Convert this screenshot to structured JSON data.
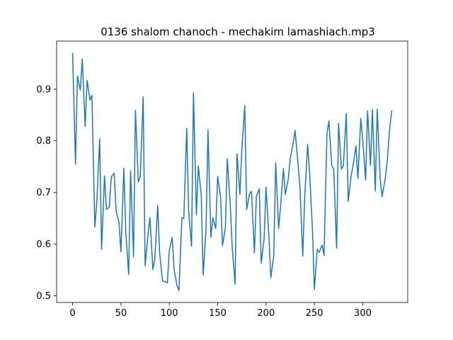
{
  "chart_data": {
    "type": "line",
    "title": "0136 shalom chanoch - mechakim lamashiach.mp3",
    "xlabel": "",
    "ylabel": "",
    "xlim": [
      -16.5,
      346.5
    ],
    "ylim": [
      0.487,
      0.993
    ],
    "xticks": [
      0,
      50,
      100,
      150,
      200,
      250,
      300
    ],
    "yticks": [
      0.5,
      0.6,
      0.7,
      0.8,
      0.9
    ],
    "ytick_labels": [
      "0.5",
      "0.6",
      "0.7",
      "0.8",
      "0.9"
    ],
    "grid": false,
    "line_color": "#1f77b4",
    "series": [
      {
        "x": [
          0,
          3,
          5,
          8,
          10,
          13,
          15,
          18,
          20,
          23,
          25,
          28,
          30,
          33,
          35,
          38,
          40,
          43,
          45,
          48,
          50,
          53,
          55,
          58,
          60,
          63,
          65,
          68,
          70,
          73,
          75,
          78,
          80,
          83,
          85,
          88,
          90,
          93,
          95,
          98,
          100,
          103,
          105,
          108,
          110,
          113,
          115,
          118,
          120,
          123,
          125,
          128,
          130,
          133,
          135,
          138,
          140,
          143,
          145,
          148,
          150,
          153,
          155,
          158,
          160,
          163,
          165,
          168,
          170,
          173,
          175,
          178,
          180,
          183,
          185,
          188,
          190,
          193,
          195,
          198,
          200,
          203,
          205,
          208,
          210,
          213,
          215,
          218,
          220,
          223,
          225,
          228,
          230,
          233,
          235,
          238,
          240,
          243,
          245,
          248,
          250,
          253,
          255,
          258,
          260,
          263,
          265,
          268,
          270,
          273,
          275,
          278,
          280,
          283,
          285,
          288,
          290,
          293,
          295,
          298,
          300,
          303,
          305,
          308,
          310,
          313,
          315,
          318,
          320,
          323,
          325,
          328,
          330
        ],
        "y": [
          0.969,
          0.755,
          0.925,
          0.898,
          0.958,
          0.828,
          0.917,
          0.879,
          0.888,
          0.633,
          0.68,
          0.804,
          0.59,
          0.732,
          0.667,
          0.672,
          0.73,
          0.737,
          0.664,
          0.642,
          0.585,
          0.747,
          0.625,
          0.541,
          0.742,
          0.575,
          0.859,
          0.72,
          0.731,
          0.885,
          0.558,
          0.618,
          0.651,
          0.551,
          0.571,
          0.675,
          0.583,
          0.528,
          0.528,
          0.525,
          0.588,
          0.613,
          0.551,
          0.519,
          0.51,
          0.651,
          0.65,
          0.824,
          0.664,
          0.596,
          0.893,
          0.657,
          0.751,
          0.696,
          0.54,
          0.63,
          0.821,
          0.613,
          0.651,
          0.63,
          0.731,
          0.692,
          0.597,
          0.632,
          0.765,
          0.677,
          0.595,
          0.522,
          0.775,
          0.696,
          0.783,
          0.868,
          0.667,
          0.698,
          0.702,
          0.583,
          0.692,
          0.707,
          0.563,
          0.609,
          0.71,
          0.615,
          0.535,
          0.577,
          0.757,
          0.63,
          0.672,
          0.746,
          0.696,
          0.726,
          0.765,
          0.795,
          0.82,
          0.758,
          0.713,
          0.577,
          0.69,
          0.793,
          0.74,
          0.63,
          0.512,
          0.59,
          0.584,
          0.598,
          0.578,
          0.813,
          0.838,
          0.752,
          0.745,
          0.592,
          0.834,
          0.745,
          0.752,
          0.853,
          0.683,
          0.732,
          0.752,
          0.79,
          0.727,
          0.843,
          0.802,
          0.724,
          0.858,
          0.752,
          0.86,
          0.703,
          0.861,
          0.728,
          0.692,
          0.724,
          0.753,
          0.826,
          0.858
        ]
      }
    ]
  }
}
